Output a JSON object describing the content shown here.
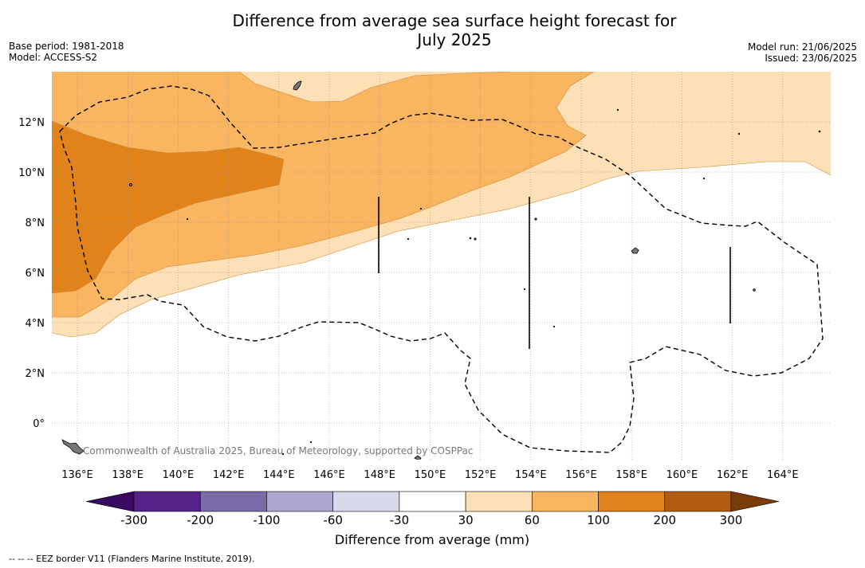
{
  "title_line1": "Difference from average sea surface height forecast for",
  "title_line2": "July 2025",
  "meta_left": {
    "base_period": "Base period: 1981-2018",
    "model": "Model: ACCESS-S2"
  },
  "meta_right": {
    "model_run": "Model run: 21/06/2025",
    "issued": "Issued: 23/06/2025"
  },
  "map": {
    "lon_ticks": [
      "136°E",
      "138°E",
      "140°E",
      "142°E",
      "144°E",
      "146°E",
      "148°E",
      "150°E",
      "152°E",
      "154°E",
      "156°E",
      "158°E",
      "160°E",
      "162°E",
      "164°E"
    ],
    "lat_ticks": [
      "12°N",
      "10°N",
      "8°N",
      "6°N",
      "4°N",
      "2°N",
      "0°"
    ],
    "credit": "Commonwealth of Australia 2025, Bureau of Meteorology, supported by COSPPac",
    "band_colors": [
      "#ffffff",
      "#fde0b6",
      "#f9b560",
      "#e2821a"
    ]
  },
  "colorbar": {
    "title": "Difference from average (mm)",
    "labels": [
      "-300",
      "-200",
      "-100",
      "-60",
      "-30",
      "30",
      "60",
      "100",
      "200",
      "300"
    ],
    "colors": [
      "#3a0a5e",
      "#55238a",
      "#7b6baa",
      "#ada6cf",
      "#d9d9ec",
      "#ffffff",
      "#fde0b6",
      "#f9b560",
      "#e2821a",
      "#b35c0f",
      "#7a3c08"
    ]
  },
  "footnote": "--  --  -- EEZ border V11 (Flanders Marine Institute, 2019)."
}
